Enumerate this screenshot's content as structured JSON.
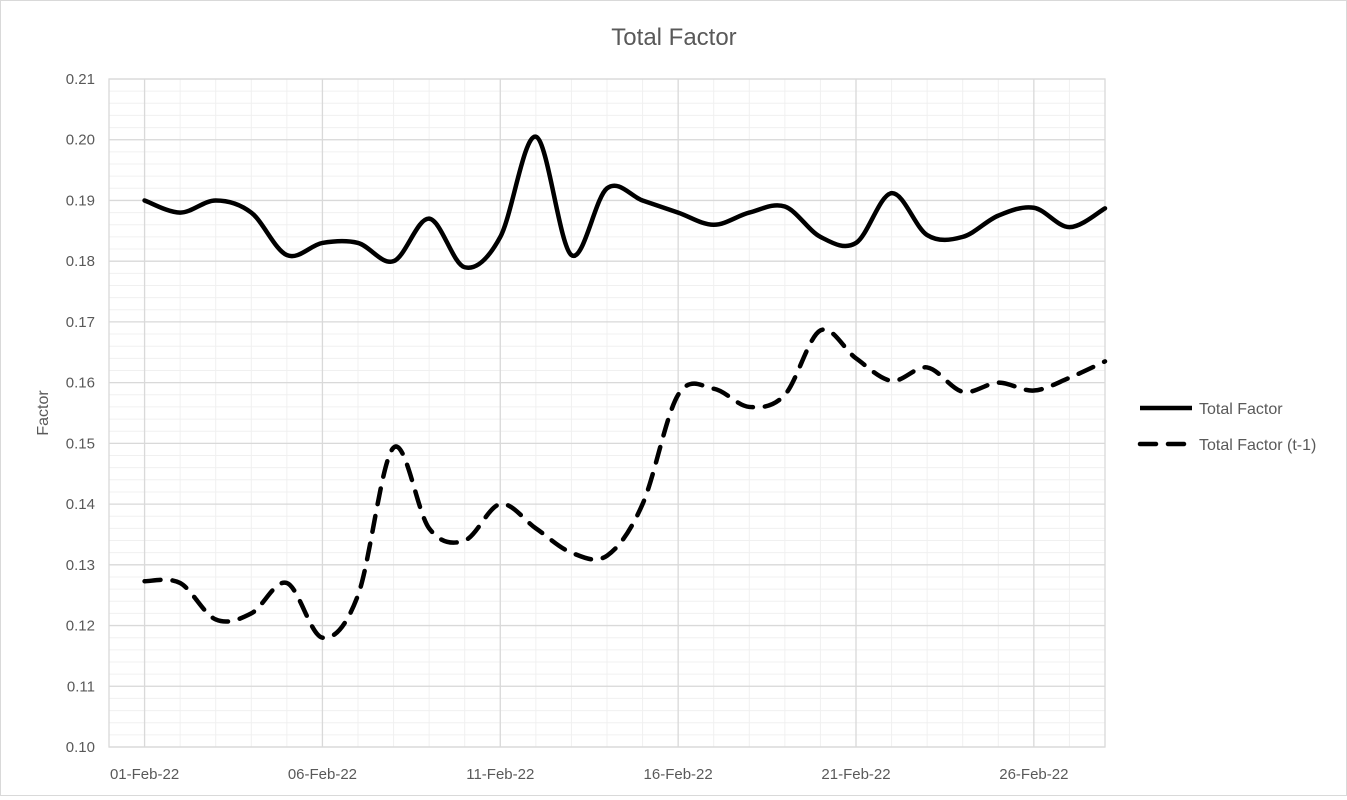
{
  "chart_data": {
    "type": "line",
    "title": "Total Factor",
    "xlabel": "",
    "ylabel": "Factor",
    "ylim": [
      0.1,
      0.21
    ],
    "y_ticks": [
      "0.10",
      "0.11",
      "0.12",
      "0.13",
      "0.14",
      "0.15",
      "0.16",
      "0.17",
      "0.18",
      "0.19",
      "0.20",
      "0.21"
    ],
    "x_tick_labels": [
      "01-Feb-22",
      "06-Feb-22",
      "11-Feb-22",
      "16-Feb-22",
      "21-Feb-22",
      "26-Feb-22"
    ],
    "x_range": [
      "31-Jan-22",
      "28-Feb-22"
    ],
    "grid": true,
    "minor_grid": true,
    "smoothed": true,
    "legend_position": "right",
    "colors": {
      "line": "#000000",
      "grid_major": "#d9d9d9",
      "grid_minor": "#f0f0f0",
      "text": "#595959"
    },
    "x": [
      "01-Feb-22",
      "02-Feb-22",
      "03-Feb-22",
      "04-Feb-22",
      "05-Feb-22",
      "06-Feb-22",
      "07-Feb-22",
      "08-Feb-22",
      "09-Feb-22",
      "10-Feb-22",
      "11-Feb-22",
      "12-Feb-22",
      "13-Feb-22",
      "14-Feb-22",
      "15-Feb-22",
      "16-Feb-22",
      "17-Feb-22",
      "18-Feb-22",
      "19-Feb-22",
      "20-Feb-22",
      "21-Feb-22",
      "22-Feb-22",
      "23-Feb-22",
      "24-Feb-22",
      "25-Feb-22",
      "26-Feb-22",
      "27-Feb-22",
      "28-Feb-22"
    ],
    "series": [
      {
        "name": "Total Factor",
        "style": "solid",
        "values": [
          0.19,
          0.188,
          0.19,
          0.188,
          0.181,
          0.183,
          0.183,
          0.18,
          0.187,
          0.179,
          0.184,
          0.2005,
          0.181,
          0.192,
          0.19,
          0.188,
          0.186,
          0.188,
          0.189,
          0.184,
          0.183,
          0.1912,
          0.1843,
          0.184,
          0.1875,
          0.1888,
          0.1856,
          0.1887
        ]
      },
      {
        "name": "Total Factor (t-1)",
        "style": "dashed",
        "values": [
          0.1273,
          0.127,
          0.121,
          0.122,
          0.127,
          0.118,
          0.125,
          0.1493,
          0.136,
          0.134,
          0.14,
          0.136,
          0.132,
          0.1315,
          0.14,
          0.158,
          0.159,
          0.156,
          0.158,
          0.1686,
          0.164,
          0.1603,
          0.1625,
          0.1585,
          0.16,
          0.1587,
          0.1608,
          0.1635
        ]
      }
    ]
  }
}
